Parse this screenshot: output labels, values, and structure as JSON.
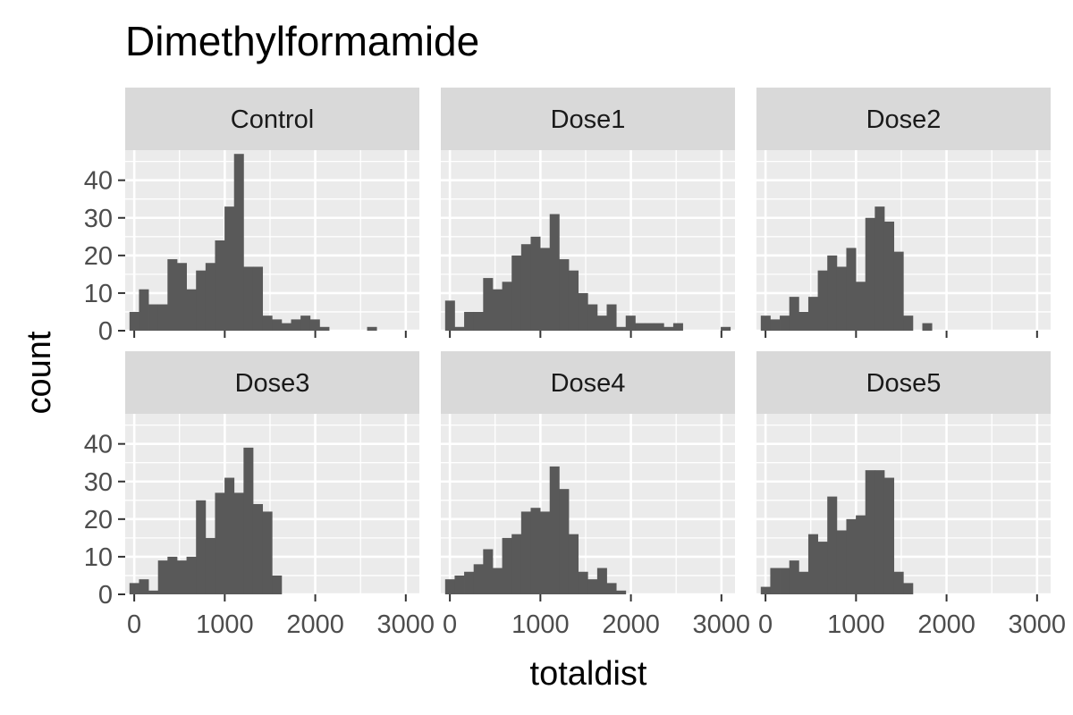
{
  "chart_data": {
    "type": "bar",
    "title": "Dimethylformamide",
    "xlabel": "totaldist",
    "ylabel": "count",
    "facet_layout": "2 rows x 3 columns",
    "grid": true,
    "xlim": [
      -100,
      3150
    ],
    "ylim": [
      0,
      48
    ],
    "x_ticks": [
      0,
      1000,
      2000,
      3000
    ],
    "y_ticks": [
      0,
      10,
      20,
      30,
      40
    ],
    "bin_width": 105,
    "bar_color": "#595959",
    "panel_background": "#ebebeb",
    "strip_background": "#d9d9d9",
    "panels": [
      {
        "name": "Control",
        "bin_centers": [
          0,
          105,
          210,
          315,
          420,
          525,
          630,
          735,
          840,
          945,
          1050,
          1155,
          1260,
          1365,
          1470,
          1575,
          1680,
          1785,
          1890,
          1995,
          2100,
          2205,
          2310,
          2415,
          2520,
          2625,
          2730,
          2835,
          2940,
          3045
        ],
        "values": [
          5,
          11,
          7,
          7,
          19,
          18,
          11,
          16,
          18,
          24,
          33,
          47,
          17,
          17,
          4,
          3,
          2,
          3,
          4,
          3,
          1,
          0,
          0,
          0,
          0,
          1,
          0,
          0,
          0,
          0
        ]
      },
      {
        "name": "Dose1",
        "bin_centers": [
          0,
          105,
          210,
          315,
          420,
          525,
          630,
          735,
          840,
          945,
          1050,
          1155,
          1260,
          1365,
          1470,
          1575,
          1680,
          1785,
          1890,
          1995,
          2100,
          2205,
          2310,
          2415,
          2520,
          2625,
          2730,
          2835,
          2940,
          3045
        ],
        "values": [
          8,
          1,
          5,
          5,
          14,
          11,
          13,
          20,
          23,
          25,
          22,
          31,
          19,
          16,
          10,
          7,
          4,
          7,
          1,
          4,
          2,
          2,
          2,
          1,
          2,
          0,
          0,
          0,
          0,
          1
        ]
      },
      {
        "name": "Dose2",
        "bin_centers": [
          0,
          105,
          210,
          315,
          420,
          525,
          630,
          735,
          840,
          945,
          1050,
          1155,
          1260,
          1365,
          1470,
          1575,
          1680,
          1785,
          1890,
          1995,
          2100,
          2205,
          2310,
          2415,
          2520,
          2625,
          2730,
          2835,
          2940,
          3045
        ],
        "values": [
          4,
          3,
          4,
          9,
          5,
          9,
          16,
          20,
          17,
          22,
          13,
          30,
          33,
          29,
          21,
          4,
          0,
          2,
          0,
          0,
          0,
          0,
          0,
          0,
          0,
          0,
          0,
          0,
          0,
          0
        ]
      },
      {
        "name": "Dose3",
        "bin_centers": [
          0,
          105,
          210,
          315,
          420,
          525,
          630,
          735,
          840,
          945,
          1050,
          1155,
          1260,
          1365,
          1470,
          1575,
          1680,
          1785,
          1890,
          1995,
          2100,
          2205,
          2310,
          2415,
          2520,
          2625,
          2730,
          2835,
          2940,
          3045
        ],
        "values": [
          3,
          4,
          1,
          9,
          10,
          9,
          10,
          25,
          15,
          27,
          31,
          27,
          39,
          24,
          22,
          5,
          0,
          0,
          0,
          0,
          0,
          0,
          0,
          0,
          0,
          0,
          0,
          0,
          0,
          0
        ]
      },
      {
        "name": "Dose4",
        "bin_centers": [
          0,
          105,
          210,
          315,
          420,
          525,
          630,
          735,
          840,
          945,
          1050,
          1155,
          1260,
          1365,
          1470,
          1575,
          1680,
          1785,
          1890,
          1995,
          2100,
          2205,
          2310,
          2415,
          2520,
          2625,
          2730,
          2835,
          2940,
          3045
        ],
        "values": [
          4,
          5,
          6,
          8,
          12,
          7,
          15,
          16,
          22,
          23,
          22,
          34,
          28,
          16,
          6,
          4,
          7,
          3,
          1,
          0,
          0,
          0,
          0,
          0,
          0,
          0,
          0,
          0,
          0,
          0
        ]
      },
      {
        "name": "Dose5",
        "bin_centers": [
          0,
          105,
          210,
          315,
          420,
          525,
          630,
          735,
          840,
          945,
          1050,
          1155,
          1260,
          1365,
          1470,
          1575,
          1680,
          1785,
          1890,
          1995,
          2100,
          2205,
          2310,
          2415,
          2520,
          2625,
          2730,
          2835,
          2940,
          3045
        ],
        "values": [
          2,
          7,
          7,
          9,
          6,
          16,
          14,
          26,
          17,
          20,
          21,
          33,
          33,
          31,
          6,
          3,
          0,
          0,
          0,
          0,
          0,
          0,
          0,
          0,
          0,
          0,
          0,
          0,
          0,
          0
        ]
      }
    ]
  }
}
